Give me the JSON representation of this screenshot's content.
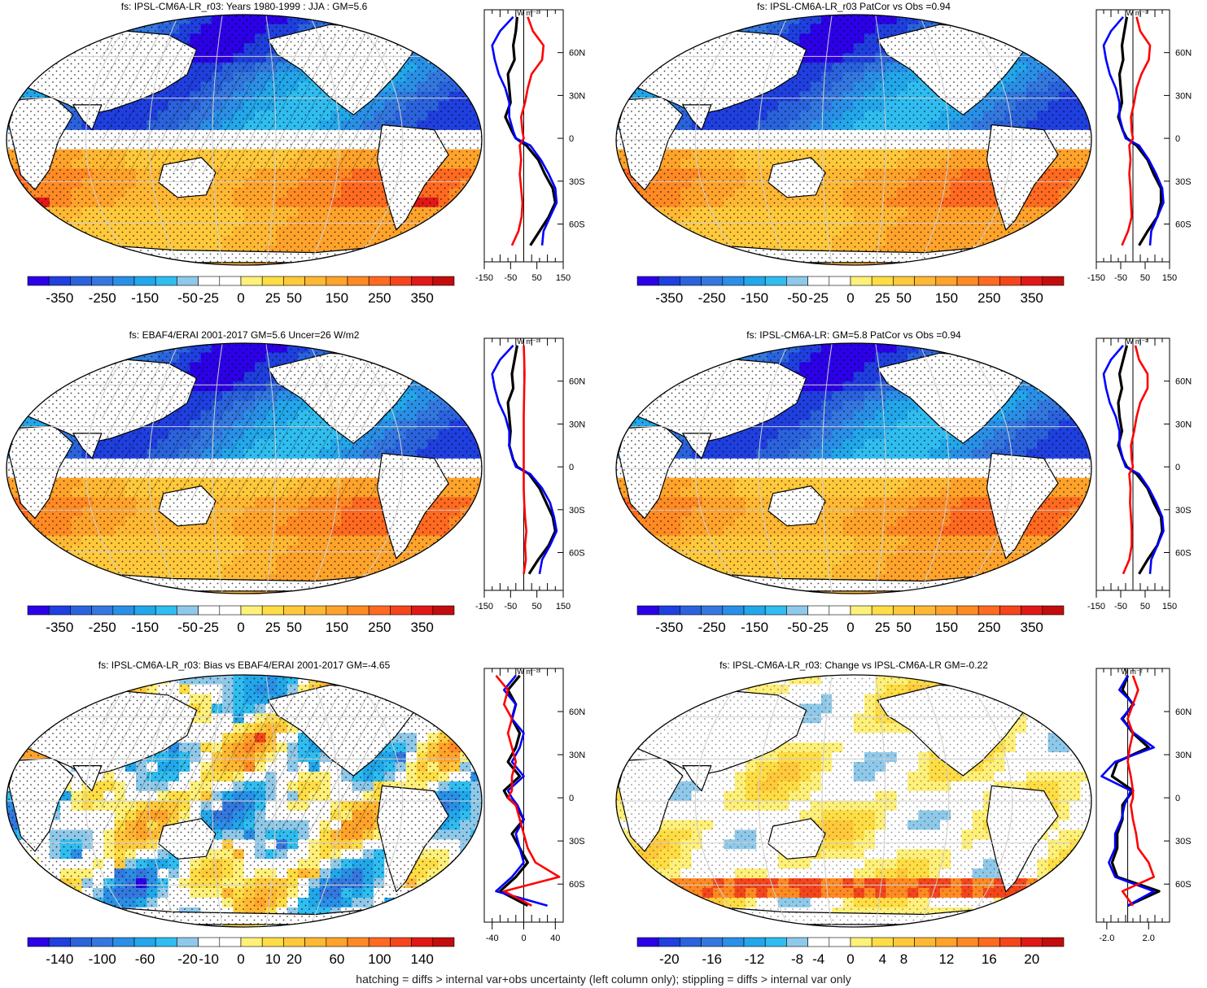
{
  "footer": "hatching = diffs > internal var+obs uncertainty (left column only); stippling = diffs > internal var only",
  "colors": {
    "land": "#ffffff",
    "zonal_model": "#000000",
    "zonal_obs": "#0000ff",
    "zonal_diff": "#ff0000",
    "colormap": [
      "#2c00e8",
      "#1f3fdf",
      "#2a63dc",
      "#3478df",
      "#2a8fe6",
      "#22a7ea",
      "#30bdf0",
      "#8fc9ea",
      "#ffffff",
      "#ffffff",
      "#fff07a",
      "#ffdd44",
      "#ffc93b",
      "#ffb833",
      "#ffa32b",
      "#ff8a24",
      "#ff6a20",
      "#f5451c",
      "#e01818",
      "#c20d0d"
    ]
  },
  "chart_data": [
    {
      "type": "heatmap",
      "title": "fs: IPSL-CM6A-LR_r03: Years 1980-1999 : JJA : GM=5.6",
      "field": "mean",
      "colorbar_labels": [
        "-350",
        "-250",
        "-150",
        "-50",
        "-25",
        "0",
        "25",
        "50",
        "150",
        "250",
        "350"
      ],
      "zonal_profile": {
        "unit": "W m⁻²",
        "xlim": [
          -150,
          150
        ],
        "xticks": [
          "-150",
          "-50",
          "50",
          "150"
        ],
        "lat_labels": [
          "60N",
          "30N",
          "0",
          "30S",
          "60S"
        ],
        "series": [
          {
            "color": "#000000",
            "lat": [
              85,
              75,
              65,
              55,
              45,
              35,
              25,
              15,
              5,
              0,
              -5,
              -15,
              -25,
              -35,
              -45,
              -55,
              -65,
              -75
            ],
            "values": [
              -25,
              -30,
              -40,
              -35,
              -60,
              -55,
              -50,
              -70,
              -45,
              -30,
              10,
              55,
              80,
              110,
              120,
              95,
              60,
              25
            ]
          },
          {
            "color": "#0000ff",
            "lat": [
              85,
              75,
              65,
              55,
              45,
              35,
              25,
              15,
              5,
              0,
              -5,
              -15,
              -25,
              -35,
              -45,
              -55,
              -65,
              -75
            ],
            "values": [
              -40,
              -90,
              -120,
              -110,
              -95,
              -70,
              -55,
              -55,
              -40,
              -30,
              25,
              65,
              95,
              120,
              125,
              100,
              75,
              70
            ]
          },
          {
            "color": "#ff0000",
            "lat": [
              85,
              75,
              65,
              55,
              45,
              35,
              25,
              15,
              5,
              0,
              -5,
              -15,
              -25,
              -35,
              -45,
              -55,
              -65,
              -75
            ],
            "values": [
              15,
              35,
              75,
              70,
              30,
              15,
              5,
              -10,
              -5,
              0,
              -15,
              -10,
              -15,
              -10,
              -5,
              -8,
              -20,
              -45
            ]
          }
        ]
      }
    },
    {
      "type": "heatmap",
      "title": "fs: IPSL-CM6A-LR_r03 PatCor vs Obs =0.94",
      "field": "mean",
      "colorbar_labels": [
        "-350",
        "-250",
        "-150",
        "-50",
        "-25",
        "0",
        "25",
        "50",
        "150",
        "250",
        "350"
      ],
      "zonal_profile": {
        "unit": "W m⁻²",
        "xlim": [
          -150,
          150
        ],
        "xticks": [
          "-150",
          "-50",
          "50",
          "150"
        ],
        "lat_labels": [
          "60N",
          "30N",
          "0",
          "30S",
          "60S"
        ],
        "series": [
          {
            "color": "#000000",
            "lat": [
              85,
              75,
              65,
              55,
              45,
              35,
              25,
              15,
              5,
              0,
              -5,
              -15,
              -25,
              -35,
              -45,
              -55,
              -65,
              -75
            ],
            "values": [
              -25,
              -35,
              -45,
              -40,
              -55,
              -50,
              -45,
              -60,
              -40,
              -25,
              15,
              60,
              85,
              115,
              115,
              100,
              60,
              25
            ]
          },
          {
            "color": "#0000ff",
            "lat": [
              85,
              75,
              65,
              55,
              45,
              35,
              25,
              15,
              5,
              0,
              -5,
              -15,
              -25,
              -35,
              -45,
              -55,
              -65,
              -75
            ],
            "values": [
              -40,
              -90,
              -120,
              -110,
              -95,
              -70,
              -55,
              -55,
              -40,
              -30,
              25,
              65,
              95,
              120,
              125,
              100,
              75,
              70
            ]
          },
          {
            "color": "#ff0000",
            "lat": [
              85,
              75,
              65,
              55,
              45,
              35,
              25,
              15,
              5,
              0,
              -5,
              -15,
              -25,
              -35,
              -45,
              -55,
              -65,
              -75
            ],
            "values": [
              15,
              30,
              70,
              65,
              35,
              15,
              5,
              -8,
              -5,
              0,
              -15,
              -10,
              -15,
              -10,
              -8,
              -5,
              -20,
              -45
            ]
          }
        ]
      }
    },
    {
      "type": "heatmap",
      "title": "fs: EBAF4/ERAI 2001-2017 GM=5.6 Uncer=26 W/m2",
      "field": "mean",
      "colorbar_labels": [
        "-350",
        "-250",
        "-150",
        "-50",
        "-25",
        "0",
        "25",
        "50",
        "150",
        "250",
        "350"
      ],
      "zonal_profile": {
        "unit": "W m⁻²",
        "xlim": [
          -150,
          150
        ],
        "xticks": [
          "-150",
          "-50",
          "50",
          "150"
        ],
        "lat_labels": [
          "60N",
          "30N",
          "0",
          "30S",
          "60S"
        ],
        "series": [
          {
            "color": "#000000",
            "lat": [
              85,
              75,
              65,
              55,
              45,
              35,
              25,
              15,
              5,
              0,
              -5,
              -15,
              -25,
              -35,
              -45,
              -55,
              -65,
              -75
            ],
            "values": [
              -25,
              -35,
              -45,
              -40,
              -60,
              -55,
              -50,
              -55,
              -40,
              -25,
              20,
              60,
              85,
              110,
              120,
              95,
              55,
              20
            ]
          },
          {
            "color": "#0000ff",
            "lat": [
              85,
              75,
              65,
              55,
              45,
              35,
              25,
              15,
              5,
              0,
              -5,
              -15,
              -25,
              -35,
              -45,
              -55,
              -65,
              -75
            ],
            "values": [
              -40,
              -90,
              -120,
              -110,
              -95,
              -70,
              -55,
              -55,
              -40,
              -30,
              25,
              70,
              100,
              115,
              125,
              100,
              70,
              60
            ]
          },
          {
            "color": "#ff0000",
            "lat": [
              85,
              75,
              65,
              55,
              45,
              35,
              25,
              15,
              5,
              0,
              -5,
              -15,
              -25,
              -35,
              -45,
              -55,
              -65,
              -75
            ],
            "values": [
              0,
              2,
              3,
              2,
              1,
              0,
              0,
              0,
              0,
              0,
              0,
              0,
              2,
              5,
              10,
              5,
              8,
              0
            ]
          }
        ]
      }
    },
    {
      "type": "heatmap",
      "title": "fs: IPSL-CM6A-LR: GM=5.8 PatCor vs Obs =0.94",
      "field": "mean",
      "colorbar_labels": [
        "-350",
        "-250",
        "-150",
        "-50",
        "-25",
        "0",
        "25",
        "50",
        "150",
        "250",
        "350"
      ],
      "zonal_profile": {
        "unit": "W m⁻²",
        "xlim": [
          -150,
          150
        ],
        "xticks": [
          "-150",
          "-50",
          "50",
          "150"
        ],
        "lat_labels": [
          "60N",
          "30N",
          "0",
          "30S",
          "60S"
        ],
        "series": [
          {
            "color": "#000000",
            "lat": [
              85,
              75,
              65,
              55,
              45,
              35,
              25,
              15,
              5,
              0,
              -5,
              -15,
              -25,
              -35,
              -45,
              -55,
              -65,
              -75
            ],
            "values": [
              -25,
              -40,
              -55,
              -45,
              -60,
              -55,
              -45,
              -60,
              -40,
              -25,
              15,
              60,
              85,
              115,
              120,
              100,
              60,
              25
            ]
          },
          {
            "color": "#0000ff",
            "lat": [
              85,
              75,
              65,
              55,
              45,
              35,
              25,
              15,
              5,
              0,
              -5,
              -15,
              -25,
              -35,
              -45,
              -55,
              -65,
              -75
            ],
            "values": [
              -40,
              -90,
              -120,
              -110,
              -95,
              -70,
              -55,
              -55,
              -40,
              -30,
              25,
              65,
              95,
              120,
              125,
              100,
              75,
              70
            ]
          },
          {
            "color": "#ff0000",
            "lat": [
              85,
              75,
              65,
              55,
              45,
              35,
              25,
              15,
              5,
              0,
              -5,
              -15,
              -25,
              -35,
              -45,
              -55,
              -65,
              -75
            ],
            "values": [
              10,
              25,
              60,
              60,
              30,
              15,
              5,
              -8,
              -5,
              0,
              -15,
              -10,
              -12,
              -8,
              -5,
              -5,
              -15,
              -40
            ]
          }
        ]
      }
    },
    {
      "type": "heatmap",
      "title": "fs: IPSL-CM6A-LR_r03: Bias vs EBAF4/ERAI 2001-2017 GM=-4.65",
      "field": "bias",
      "colorbar_labels": [
        "-140",
        "-100",
        "-60",
        "-20",
        "-10",
        "0",
        "10",
        "20",
        "60",
        "100",
        "140"
      ],
      "zonal_profile": {
        "unit": "W m⁻²",
        "xlim": [
          -50,
          50
        ],
        "xticks": [
          "-40",
          "0",
          "40"
        ],
        "lat_labels": [
          "60N",
          "30N",
          "0",
          "30S",
          "60S"
        ],
        "series": [
          {
            "color": "#000000",
            "lat": [
              85,
              75,
              65,
              55,
              45,
              35,
              25,
              15,
              5,
              0,
              -5,
              -15,
              -25,
              -35,
              -45,
              -55,
              -65,
              -75
            ],
            "values": [
              -5,
              -20,
              -10,
              -15,
              -5,
              -10,
              -20,
              -5,
              -25,
              -20,
              -10,
              0,
              -15,
              -5,
              5,
              -10,
              -30,
              5
            ]
          },
          {
            "color": "#0000ff",
            "lat": [
              85,
              75,
              65,
              55,
              45,
              35,
              25,
              15,
              5,
              0,
              -5,
              -15,
              -25,
              -35,
              -45,
              -55,
              -65,
              -75
            ],
            "values": [
              -10,
              -25,
              -10,
              -15,
              0,
              -5,
              -15,
              0,
              -20,
              -15,
              -8,
              0,
              -10,
              -5,
              0,
              -15,
              -35,
              30
            ]
          },
          {
            "color": "#ff0000",
            "lat": [
              85,
              75,
              65,
              55,
              45,
              35,
              25,
              15,
              5,
              0,
              -5,
              -15,
              -25,
              -35,
              -45,
              -55,
              -65,
              -75
            ],
            "values": [
              -35,
              -20,
              -25,
              -15,
              -20,
              -15,
              -10,
              -15,
              -15,
              -20,
              -10,
              -5,
              0,
              5,
              15,
              45,
              -25,
              10
            ]
          }
        ]
      }
    },
    {
      "type": "heatmap",
      "title": "fs: IPSL-CM6A-LR_r03: Change vs IPSL-CM6A-LR GM=-0.22",
      "field": "change",
      "colorbar_labels": [
        "-20",
        "-16",
        "-12",
        "-8",
        "-4",
        "0",
        "4",
        "8",
        "12",
        "16",
        "20"
      ],
      "zonal_profile": {
        "unit": "W m⁻²",
        "xlim": [
          -3,
          4
        ],
        "xticks": [
          "-2.0",
          "2.0"
        ],
        "lat_labels": [
          "60N",
          "30N",
          "0",
          "30S",
          "60S"
        ],
        "series": [
          {
            "color": "#000000",
            "lat": [
              85,
              75,
              65,
              55,
              45,
              35,
              25,
              15,
              5,
              0,
              -5,
              -15,
              -25,
              -35,
              -45,
              -55,
              -65,
              -75
            ],
            "values": [
              0,
              -0.5,
              0.5,
              -0.5,
              0.5,
              2,
              -1,
              -1.5,
              0.5,
              0,
              -0.5,
              -0.5,
              -1,
              -1,
              -1.5,
              -1,
              3,
              0
            ]
          },
          {
            "color": "#0000ff",
            "lat": [
              85,
              75,
              65,
              55,
              45,
              35,
              25,
              15,
              5,
              0,
              -5,
              -15,
              -25,
              -35,
              -45,
              -55,
              -65,
              -75
            ],
            "values": [
              0,
              -0.8,
              0.6,
              -0.6,
              0.6,
              2.5,
              -1.2,
              -2.5,
              0.3,
              0,
              -0.3,
              -0.6,
              -1.2,
              -1.2,
              -1.8,
              -1.2,
              2.5,
              0
            ]
          },
          {
            "color": "#ff0000",
            "lat": [
              85,
              75,
              65,
              55,
              45,
              35,
              25,
              15,
              5,
              0,
              -5,
              -15,
              -25,
              -35,
              -45,
              -55,
              -65,
              -75
            ],
            "values": [
              0.5,
              1,
              0.5,
              0,
              0.5,
              0.2,
              0,
              0.3,
              0.5,
              0.5,
              0.3,
              0.5,
              0.8,
              1,
              2,
              2.5,
              -0.5,
              0.5
            ]
          }
        ]
      }
    }
  ]
}
